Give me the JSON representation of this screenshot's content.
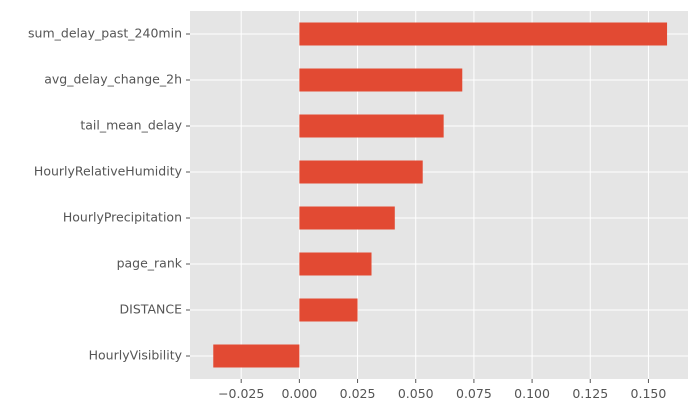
{
  "chart_data": {
    "type": "bar",
    "orientation": "horizontal",
    "title": "",
    "xlabel": "",
    "ylabel": "",
    "categories": [
      "sum_delay_past_240min",
      "avg_delay_change_2h",
      "tail_mean_delay",
      "HourlyRelativeHumidity",
      "HourlyPrecipitation",
      "page_rank",
      "DISTANCE",
      "HourlyVisibility"
    ],
    "values": [
      0.158,
      0.07,
      0.062,
      0.053,
      0.041,
      0.031,
      0.025,
      -0.037
    ],
    "xlim": [
      -0.047,
      0.167
    ],
    "xticks": [
      -0.025,
      0.0,
      0.025,
      0.05,
      0.075,
      0.1,
      0.125,
      0.15
    ],
    "xtick_labels": [
      "−0.025",
      "0.000",
      "0.025",
      "0.050",
      "0.075",
      "0.100",
      "0.125",
      "0.150"
    ],
    "grid": true,
    "legend": "none",
    "colors": {
      "bar": "#E24A33",
      "panel": "#E5E5E5",
      "grid": "#FFFFFF",
      "text": "#555555"
    }
  }
}
